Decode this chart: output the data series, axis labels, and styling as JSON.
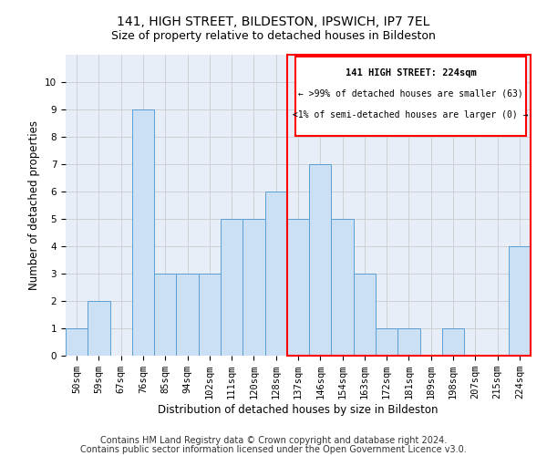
{
  "title": "141, HIGH STREET, BILDESTON, IPSWICH, IP7 7EL",
  "subtitle": "Size of property relative to detached houses in Bildeston",
  "xlabel": "Distribution of detached houses by size in Bildeston",
  "ylabel": "Number of detached properties",
  "footer_line1": "Contains HM Land Registry data © Crown copyright and database right 2024.",
  "footer_line2": "Contains public sector information licensed under the Open Government Licence v3.0.",
  "categories": [
    "50sqm",
    "59sqm",
    "67sqm",
    "76sqm",
    "85sqm",
    "94sqm",
    "102sqm",
    "111sqm",
    "120sqm",
    "128sqm",
    "137sqm",
    "146sqm",
    "154sqm",
    "163sqm",
    "172sqm",
    "181sqm",
    "189sqm",
    "198sqm",
    "207sqm",
    "215sqm",
    "224sqm"
  ],
  "values": [
    1,
    2,
    0,
    9,
    3,
    3,
    3,
    5,
    5,
    6,
    5,
    7,
    5,
    3,
    1,
    1,
    0,
    1,
    0,
    0,
    4
  ],
  "bar_color": "#cce0f5",
  "bar_edge_color": "#5a9fd4",
  "annotation_title": "141 HIGH STREET: 224sqm",
  "annotation_line1": "← >99% of detached houses are smaller (63)",
  "annotation_line2": "<1% of semi-detached houses are larger (0) →",
  "ylim": [
    0,
    11
  ],
  "yticks": [
    0,
    1,
    2,
    3,
    4,
    5,
    6,
    7,
    8,
    9,
    10,
    11
  ],
  "grid_color": "#cccccc",
  "background_color": "#e8eef8",
  "title_fontsize": 10,
  "subtitle_fontsize": 9,
  "axis_label_fontsize": 8.5,
  "tick_fontsize": 7.5,
  "footer_fontsize": 7
}
